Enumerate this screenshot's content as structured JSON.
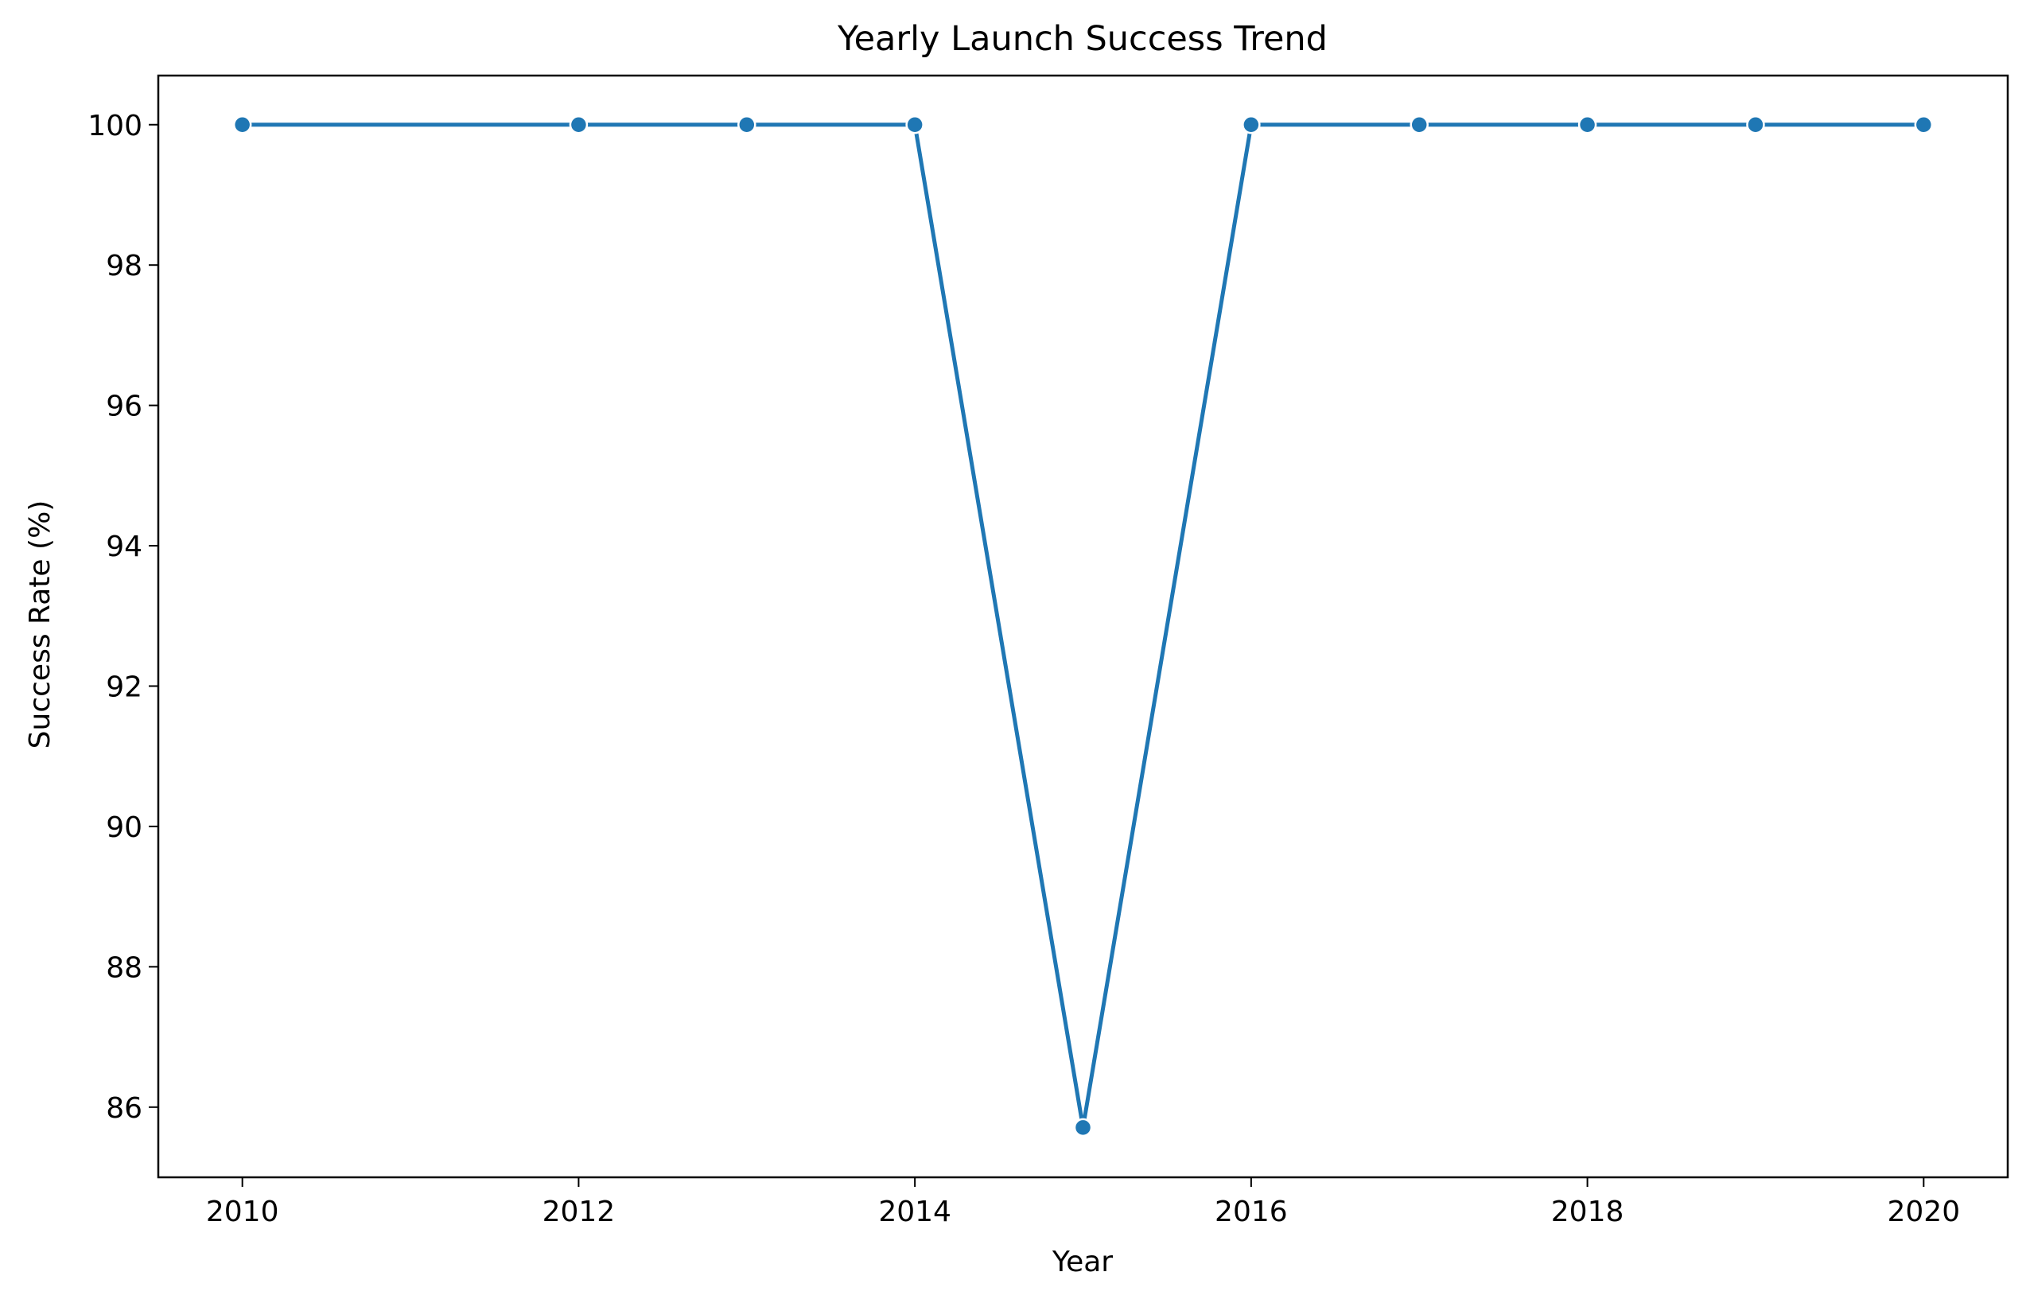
{
  "chart_data": {
    "type": "line",
    "title": "Yearly Launch Success Trend",
    "xlabel": "Year",
    "ylabel": "Success Rate (%)",
    "x": [
      2010,
      2012,
      2013,
      2014,
      2015,
      2016,
      2017,
      2018,
      2019,
      2020
    ],
    "series": [
      {
        "values": [
          100,
          100,
          100,
          100,
          85.71,
          100,
          100,
          100,
          100,
          100
        ],
        "color": "#1f77b4",
        "marker": "circle"
      }
    ],
    "xlim": [
      2009.5,
      2020.5
    ],
    "ylim": [
      85.0,
      100.7
    ],
    "xticks": [
      2010,
      2012,
      2014,
      2016,
      2018,
      2020
    ],
    "xtick_labels": [
      "2010",
      "2012",
      "2014",
      "2016",
      "2018",
      "2020"
    ],
    "yticks": [
      86,
      88,
      90,
      92,
      94,
      96,
      98,
      100
    ],
    "ytick_labels": [
      "86",
      "88",
      "90",
      "92",
      "94",
      "96",
      "98",
      "100"
    ],
    "grid": false,
    "legend": false
  }
}
